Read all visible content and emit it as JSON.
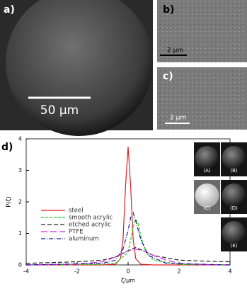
{
  "images": {
    "a": {
      "label": "a)",
      "scale": "50 μm"
    },
    "b": {
      "label": "b)",
      "scale": "2 μm"
    },
    "c": {
      "label": "c)",
      "scale": "2 μm"
    },
    "insets": [
      "(A)",
      "(B)",
      "(C)",
      "(D)",
      "(E)"
    ]
  },
  "chart_data": {
    "type": "line",
    "panel_label": "d)",
    "x_label": "ζ/μm",
    "y_label": "P(ζ)",
    "xlim": [
      -4,
      4
    ],
    "ylim": [
      0,
      4
    ],
    "xticks": [
      -4,
      -2,
      0,
      2,
      4
    ],
    "yticks": [
      0,
      1,
      2,
      3,
      4
    ],
    "legend": "left",
    "series": [
      {
        "name": "steel",
        "color": "#e02020",
        "dash": "solid",
        "x": [
          -4,
          -1,
          -0.5,
          -0.3,
          -0.2,
          -0.1,
          0,
          0.1,
          0.2,
          0.3,
          0.5,
          1,
          4
        ],
        "values": [
          0,
          0,
          0.02,
          0.2,
          0.8,
          2.5,
          3.75,
          2.5,
          0.8,
          0.2,
          0.02,
          0,
          0
        ]
      },
      {
        "name": "smooth acrylic",
        "color": "#22cc22",
        "dash": "dashed",
        "x": [
          -4,
          -1,
          -0.5,
          0,
          0.1,
          0.2,
          0.3,
          0.4,
          0.5,
          0.7,
          1,
          2,
          4
        ],
        "values": [
          0,
          0.02,
          0.05,
          0.4,
          0.8,
          1.2,
          1.45,
          1.3,
          0.9,
          0.4,
          0.15,
          0.02,
          0
        ]
      },
      {
        "name": "etched acrylic",
        "color": "#222222",
        "dash": "finedash",
        "x": [
          -4,
          -2,
          -1,
          -0.5,
          0,
          0.3,
          0.6,
          1,
          2,
          3,
          4
        ],
        "values": [
          0.05,
          0.1,
          0.15,
          0.25,
          0.45,
          0.55,
          0.45,
          0.3,
          0.15,
          0.12,
          0.1
        ]
      },
      {
        "name": "PTFE",
        "color": "#e020e0",
        "dash": "longdash",
        "x": [
          -4,
          -2,
          -1,
          -0.5,
          0,
          0.3,
          0.6,
          1,
          1.5,
          2,
          3,
          4
        ],
        "values": [
          0,
          0.02,
          0.1,
          0.25,
          0.45,
          0.5,
          0.45,
          0.3,
          0.15,
          0.05,
          0.01,
          0
        ]
      },
      {
        "name": "aluminum",
        "color": "#1a1a9a",
        "dash": "dashdot",
        "x": [
          -4,
          -1,
          -0.5,
          -0.2,
          0,
          0.1,
          0.2,
          0.3,
          0.5,
          0.8,
          1.5,
          4
        ],
        "values": [
          0,
          0.05,
          0.15,
          0.5,
          1.1,
          1.5,
          1.65,
          1.4,
          0.8,
          0.3,
          0.05,
          0
        ]
      }
    ]
  }
}
